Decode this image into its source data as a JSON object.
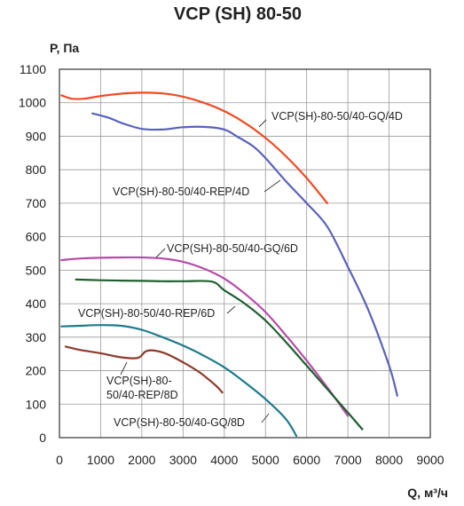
{
  "chart_data": {
    "type": "line",
    "title": "VCP (SH) 80-50",
    "xlabel": "Q, м³/ч",
    "ylabel": "P, Па",
    "xlim": [
      0,
      9000
    ],
    "ylim": [
      0,
      1100
    ],
    "xticks": [
      0,
      1000,
      2000,
      3000,
      4000,
      5000,
      6000,
      7000,
      8000,
      9000
    ],
    "yticks": [
      0,
      100,
      200,
      300,
      400,
      500,
      600,
      700,
      800,
      900,
      1000,
      1100
    ],
    "grid": true,
    "series": [
      {
        "name": "VCP(SH)-80-50/40-GQ/4D",
        "color": "#f04a23",
        "label_lines": [
          "VCP(SH)-80-50/40-GQ/4D"
        ],
        "points": [
          [
            50,
            1022
          ],
          [
            300,
            1012
          ],
          [
            600,
            1012
          ],
          [
            1000,
            1020
          ],
          [
            1500,
            1027
          ],
          [
            2000,
            1030
          ],
          [
            2500,
            1028
          ],
          [
            3000,
            1018
          ],
          [
            3500,
            1000
          ],
          [
            4000,
            975
          ],
          [
            4500,
            940
          ],
          [
            5000,
            895
          ],
          [
            5500,
            840
          ],
          [
            6000,
            775
          ],
          [
            6500,
            700
          ]
        ]
      },
      {
        "name": "VCP(SH)-80-50/40-REP/4D",
        "color": "#5a62ba",
        "label_lines": [
          "VCP(SH)-80-50/40-REP/4D"
        ],
        "points": [
          [
            800,
            968
          ],
          [
            1200,
            955
          ],
          [
            1500,
            940
          ],
          [
            2000,
            922
          ],
          [
            2500,
            920
          ],
          [
            3000,
            927
          ],
          [
            3500,
            928
          ],
          [
            4000,
            920
          ],
          [
            4300,
            900
          ],
          [
            4700,
            870
          ],
          [
            5000,
            835
          ],
          [
            5500,
            765
          ],
          [
            6000,
            700
          ],
          [
            6500,
            630
          ],
          [
            7000,
            510
          ],
          [
            7500,
            380
          ],
          [
            8000,
            215
          ],
          [
            8200,
            125
          ]
        ]
      },
      {
        "name": "VCP(SH)-80-50/40-GQ/6D",
        "color": "#b64ba9",
        "label_lines": [
          "VCP(SH)-80-50/40-GQ/6D"
        ],
        "points": [
          [
            50,
            530
          ],
          [
            500,
            535
          ],
          [
            1000,
            537
          ],
          [
            1500,
            538
          ],
          [
            2000,
            538
          ],
          [
            2500,
            535
          ],
          [
            3000,
            525
          ],
          [
            3500,
            505
          ],
          [
            4000,
            475
          ],
          [
            4500,
            430
          ],
          [
            5000,
            375
          ],
          [
            5500,
            305
          ],
          [
            6000,
            230
          ],
          [
            6500,
            150
          ],
          [
            7000,
            65
          ]
        ]
      },
      {
        "name": "VCP(SH)-80-50/40-REP/6D",
        "color": "#1f5e2e",
        "label_lines": [
          "VCP(SH)-80-50/40-REP/6D"
        ],
        "points": [
          [
            400,
            472
          ],
          [
            1000,
            470
          ],
          [
            1500,
            469
          ],
          [
            2000,
            468
          ],
          [
            2500,
            467
          ],
          [
            3000,
            467
          ],
          [
            3700,
            466
          ],
          [
            4000,
            440
          ],
          [
            4500,
            400
          ],
          [
            5000,
            350
          ],
          [
            5500,
            285
          ],
          [
            6000,
            215
          ],
          [
            6500,
            145
          ],
          [
            7000,
            75
          ],
          [
            7350,
            25
          ]
        ]
      },
      {
        "name": "VCP(SH)-80-50/40-REP/8D",
        "color": "#8c3b2c",
        "label_lines": [
          "VCP(SH)-80-",
          "50/40-REP/8D"
        ],
        "points": [
          [
            150,
            272
          ],
          [
            500,
            262
          ],
          [
            1000,
            252
          ],
          [
            1500,
            240
          ],
          [
            1900,
            238
          ],
          [
            2100,
            258
          ],
          [
            2300,
            260
          ],
          [
            2600,
            250
          ],
          [
            3000,
            225
          ],
          [
            3400,
            195
          ],
          [
            3800,
            155
          ],
          [
            3950,
            135
          ]
        ]
      },
      {
        "name": "VCP(SH)-80-50/40-GQ/8D",
        "color": "#1d7a8c",
        "label_lines": [
          "VCP(SH)-80-50/40-GQ/8D"
        ],
        "points": [
          [
            50,
            332
          ],
          [
            500,
            334
          ],
          [
            1000,
            336
          ],
          [
            1500,
            334
          ],
          [
            2000,
            322
          ],
          [
            2500,
            300
          ],
          [
            3000,
            275
          ],
          [
            3500,
            245
          ],
          [
            4000,
            210
          ],
          [
            4500,
            165
          ],
          [
            5000,
            115
          ],
          [
            5500,
            55
          ],
          [
            5750,
            5
          ]
        ]
      }
    ]
  }
}
